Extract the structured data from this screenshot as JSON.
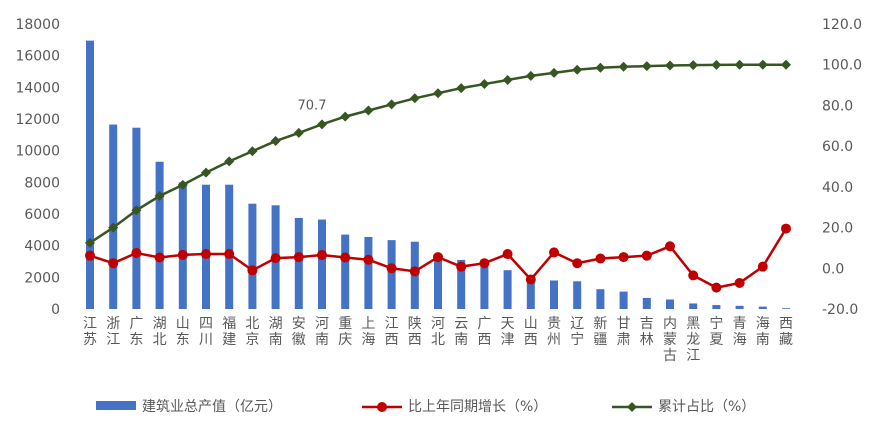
{
  "chart_data": {
    "type": "bar",
    "categories": [
      "江苏",
      "浙江",
      "广东",
      "湖北",
      "山东",
      "四川",
      "福建",
      "北京",
      "湖南",
      "安徽",
      "河南",
      "重庆",
      "上海",
      "江西",
      "陕西",
      "河北",
      "云南",
      "广西",
      "天津",
      "山西",
      "贵州",
      "辽宁",
      "新疆",
      "甘肃",
      "吉林",
      "内蒙古",
      "黑龙江",
      "宁夏",
      "青海",
      "海南",
      "西藏"
    ],
    "left_axis": {
      "min": 0,
      "max": 18000,
      "ticks": [
        0,
        2000,
        4000,
        6000,
        8000,
        10000,
        12000,
        14000,
        16000,
        18000
      ]
    },
    "right_axis": {
      "min": -20,
      "max": 120,
      "ticks": [
        "-20.0",
        "0.0",
        "20.0",
        "40.0",
        "60.0",
        "80.0",
        "100.0",
        "120.0"
      ]
    },
    "series": [
      {
        "name": "建筑业总产值（亿元）",
        "kind": "bar",
        "axis": "left",
        "color": "#4472C4",
        "values": [
          16950,
          11650,
          11450,
          9300,
          8000,
          7850,
          7850,
          6650,
          6550,
          5750,
          5650,
          4700,
          4550,
          4350,
          4250,
          3250,
          3100,
          2900,
          2450,
          1950,
          1800,
          1750,
          1250,
          1100,
          700,
          600,
          350,
          250,
          200,
          150,
          50
        ]
      },
      {
        "name": "比上年同期增长（%）",
        "kind": "line",
        "axis": "right",
        "color": "#C00000",
        "values": [
          6.2,
          2.5,
          7.5,
          5.3,
          6.6,
          7.0,
          7.0,
          -1.0,
          5.0,
          5.5,
          6.5,
          5.3,
          4.2,
          0.0,
          -1.5,
          5.5,
          0.8,
          2.5,
          7.0,
          -5.5,
          7.8,
          2.5,
          4.8,
          5.5,
          6.2,
          10.8,
          -3.5,
          -9.5,
          -7.2,
          0.8,
          19.5
        ]
      },
      {
        "name": "累计占比（%）",
        "kind": "line",
        "axis": "right",
        "color": "#375623",
        "values": [
          12.5,
          20.0,
          28.5,
          35.5,
          41.0,
          47.0,
          52.5,
          57.5,
          62.5,
          66.5,
          70.7,
          74.5,
          77.5,
          80.5,
          83.5,
          86.0,
          88.5,
          90.5,
          92.5,
          94.5,
          96.0,
          97.5,
          98.5,
          99.0,
          99.3,
          99.6,
          99.8,
          99.9,
          100.0,
          100.0,
          100.0
        ]
      }
    ],
    "annotation": {
      "text": "70.7",
      "category": "河南",
      "series": "累计占比（%）"
    },
    "legend_position": "bottom",
    "grid": false
  }
}
